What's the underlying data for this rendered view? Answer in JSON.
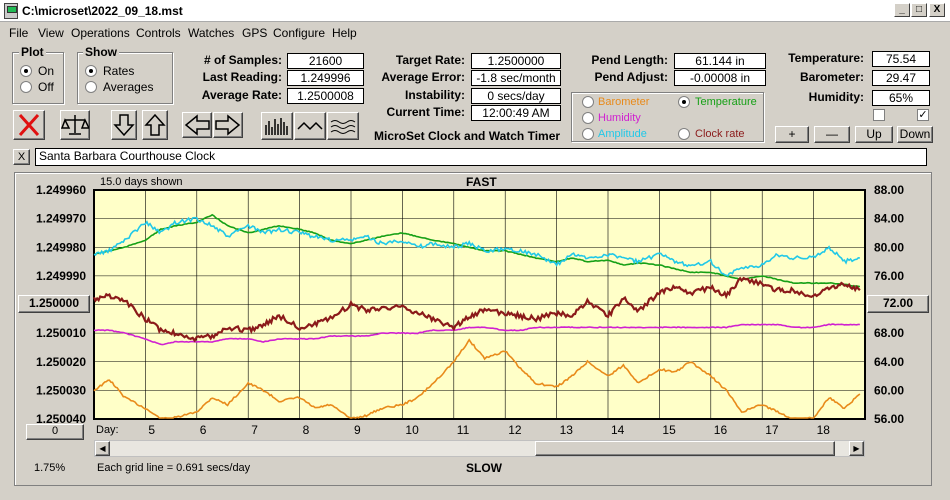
{
  "window": {
    "title": "C:\\microset\\2022_09_18.mst",
    "min": "_",
    "max": "□",
    "close": "X"
  },
  "menu": [
    "File",
    "View",
    "Operations",
    "Controls",
    "Watches",
    "GPS",
    "Configure",
    "Help"
  ],
  "plot": {
    "legend": "Plot",
    "on": "On",
    "off": "Off",
    "selected": "On"
  },
  "show": {
    "legend": "Show",
    "rates": "Rates",
    "averages": "Averages",
    "selected": "Rates"
  },
  "stats": {
    "samples_label": "# of Samples:",
    "samples": "21600",
    "last_label": "Last Reading:",
    "last": "1.249996",
    "avg_label": "Average Rate:",
    "avg": "1.2500008",
    "target_label": "Target Rate:",
    "target": "1.2500000",
    "err_label": "Average Error:",
    "err": "-1.8 sec/month",
    "inst_label": "Instability:",
    "inst": "0 secs/day",
    "time_label": "Current Time:",
    "time": "12:00:49 AM",
    "pend_len_label": "Pend Length:",
    "pend_len": "61.144 in",
    "pend_adj_label": "Pend Adjust:",
    "pend_adj": "-0.00008 in",
    "temp_label": "Temperature:",
    "temp": "75.54",
    "baro_label": "Barometer:",
    "baro": "29.47",
    "hum_label": "Humidity:",
    "hum": "65%"
  },
  "app_name": "MicroSet Clock and Watch Timer",
  "sensors": [
    {
      "label": "Barometer",
      "color": "#e88a1a",
      "selected": false
    },
    {
      "label": "Temperature",
      "color": "#16a016",
      "selected": true
    },
    {
      "label": "Humidity",
      "color": "#d020d0",
      "selected": false
    },
    {
      "label": "Amplitude",
      "color": "#20c8e8",
      "selected": false
    },
    {
      "label": "Clock rate",
      "color": "#8b1a1a",
      "selected": false
    }
  ],
  "adjust_buttons": {
    "plus": "+",
    "minus": "—",
    "up": "Up",
    "down": "Down"
  },
  "checkboxes": [
    {
      "checked": false
    },
    {
      "checked": true
    }
  ],
  "clock_name": "Santa Barbara Courthouse Clock",
  "clear_btn": "X",
  "chart_header": {
    "days_shown": "15.0 days shown",
    "fast": "FAST",
    "slow": "SLOW",
    "grid_note": "Each grid line = 0.691 secs/day",
    "zoom": "1.75%",
    "center_btn": "1.250000",
    "left_btn": "0",
    "right_btn": "72.00",
    "day_label": "Day:"
  },
  "chart_data": {
    "type": "line",
    "title": "",
    "x_ticks": [
      "5",
      "6",
      "7",
      "8",
      "9",
      "10",
      "11",
      "12",
      "13",
      "14",
      "15",
      "16",
      "17",
      "18"
    ],
    "y_ticks_left": [
      "1.249960",
      "1.249970",
      "1.249980",
      "1.249990",
      "1.250000",
      "1.250010",
      "1.250020",
      "1.250030",
      "1.250040"
    ],
    "y_ticks_right": [
      "88.00",
      "84.00",
      "80.00",
      "76.00",
      "72.00",
      "68.00",
      "64.00",
      "60.00",
      "56.00"
    ],
    "xlim": [
      4.0,
      19.0
    ],
    "ylim_left": [
      1.24996,
      1.25004
    ],
    "ylim_right": [
      56,
      88
    ],
    "grid": true,
    "series": [
      {
        "key": "barometer",
        "color": "#e88a1a",
        "axis": "right",
        "x": [
          4,
          4.3,
          4.6,
          5,
          5.3,
          5.6,
          6,
          6.3,
          6.6,
          7,
          7.3,
          7.6,
          8,
          8.3,
          8.6,
          9,
          9.3,
          9.6,
          10,
          10.3,
          10.6,
          11,
          11.3,
          11.6,
          12,
          12.3,
          12.6,
          13,
          13.3,
          13.6,
          14,
          14.3,
          14.6,
          15,
          15.3,
          15.6,
          16,
          16.3,
          16.6,
          17,
          17.3,
          17.6,
          18,
          18.3,
          18.6,
          18.9
        ],
        "y": [
          60,
          61.5,
          59,
          57.5,
          56,
          56.2,
          57,
          59,
          58,
          61,
          60,
          58.5,
          59,
          57.5,
          58,
          56,
          56.5,
          57.5,
          58,
          59,
          61,
          64,
          67,
          64.5,
          65.5,
          63,
          61,
          60.5,
          62,
          64,
          62,
          63.5,
          61,
          63,
          62.5,
          64,
          62,
          60,
          57,
          58,
          57,
          56,
          56.2,
          59,
          57.5,
          59.5
        ]
      },
      {
        "key": "temperature",
        "color": "#16a016",
        "axis": "right",
        "x": [
          4,
          4.3,
          4.6,
          5,
          5.3,
          5.6,
          6,
          6.3,
          6.6,
          7,
          7.3,
          7.6,
          8,
          8.3,
          8.6,
          9,
          9.3,
          9.6,
          10,
          10.3,
          10.6,
          11,
          11.3,
          11.6,
          12,
          12.3,
          12.6,
          13,
          13.3,
          13.6,
          14,
          14.3,
          14.6,
          15,
          15.3,
          15.6,
          16,
          16.3,
          16.6,
          17,
          17.3,
          17.6,
          18,
          18.3,
          18.6,
          18.9
        ],
        "y": [
          79,
          79.5,
          80,
          81,
          82.5,
          83,
          83.5,
          84.5,
          83,
          82,
          82.5,
          83,
          82.5,
          82,
          81,
          80.5,
          81,
          81.5,
          82,
          81.5,
          81,
          80.5,
          80,
          79.5,
          79.5,
          79,
          78.5,
          78,
          78.5,
          78,
          78.2,
          77.5,
          77.8,
          77.5,
          77,
          76.5,
          76.5,
          76,
          75.5,
          76,
          75.5,
          75,
          75,
          75,
          74.8,
          74.5
        ]
      },
      {
        "key": "amplitude",
        "color": "#20c8e8",
        "axis": "right",
        "x": [
          4,
          4.3,
          4.6,
          5,
          5.3,
          5.6,
          6,
          6.3,
          6.6,
          7,
          7.3,
          7.6,
          8,
          8.3,
          8.6,
          9,
          9.3,
          9.6,
          10,
          10.3,
          10.6,
          11,
          11.3,
          11.6,
          12,
          12.3,
          12.6,
          13,
          13.3,
          13.6,
          14,
          14.3,
          14.6,
          15,
          15.3,
          15.6,
          16,
          16.3,
          16.6,
          17,
          17.3,
          17.6,
          18,
          18.3,
          18.6,
          18.9
        ],
        "y": [
          79,
          79.5,
          81,
          83.5,
          82,
          83.5,
          84,
          83,
          81.5,
          83,
          82,
          82.5,
          82,
          81.5,
          81,
          81,
          81.5,
          80.5,
          81,
          80,
          80.5,
          80,
          80.5,
          79.5,
          79.8,
          79.5,
          79,
          77.5,
          79,
          78.5,
          79,
          78.5,
          78,
          79,
          78,
          77.5,
          78,
          76,
          77,
          77.5,
          79,
          78.5,
          78.5,
          80,
          78,
          78.5
        ]
      },
      {
        "key": "humidity",
        "color": "#d020d0",
        "axis": "left",
        "x": [
          4,
          4.3,
          4.6,
          5,
          5.3,
          5.6,
          6,
          6.3,
          6.6,
          7,
          7.3,
          7.6,
          8,
          8.3,
          8.6,
          9,
          9.3,
          9.6,
          10,
          10.3,
          10.6,
          11,
          11.3,
          11.6,
          12,
          12.3,
          12.6,
          13,
          13.3,
          13.6,
          14,
          14.3,
          14.6,
          15,
          15.3,
          15.6,
          16,
          16.3,
          16.6,
          17,
          17.3,
          17.6,
          18,
          18.3,
          18.6,
          18.9
        ],
        "y": [
          1.250009,
          1.250009,
          1.25001,
          1.250012,
          1.250014,
          1.250013,
          1.250013,
          1.250013,
          1.250012,
          1.250012,
          1.250013,
          1.250012,
          1.250012,
          1.250012,
          1.250011,
          1.250011,
          1.250011,
          1.25001,
          1.25001,
          1.25001,
          1.250009,
          1.250009,
          1.250008,
          1.250008,
          1.250009,
          1.250009,
          1.250008,
          1.250008,
          1.250008,
          1.250008,
          1.250008,
          1.250008,
          1.250008,
          1.250008,
          1.250008,
          1.250008,
          1.250008,
          1.250008,
          1.250007,
          1.250007,
          1.250007,
          1.250008,
          1.250008,
          1.250007,
          1.250007,
          1.250007
        ]
      },
      {
        "key": "clock_rate",
        "color": "#8b1a1a",
        "axis": "left",
        "x": [
          4,
          4.3,
          4.6,
          5,
          5.3,
          5.6,
          6,
          6.3,
          6.6,
          7,
          7.3,
          7.6,
          8,
          8.3,
          8.6,
          9,
          9.3,
          9.6,
          10,
          10.3,
          10.6,
          11,
          11.3,
          11.6,
          12,
          12.3,
          12.6,
          13,
          13.3,
          13.6,
          14,
          14.3,
          14.6,
          15,
          15.3,
          15.6,
          16,
          16.3,
          16.6,
          17,
          17.3,
          17.6,
          18,
          18.3,
          18.6,
          18.9
        ],
        "y": [
          1.249998,
          1.249997,
          1.249999,
          1.250005,
          1.250009,
          1.25001,
          1.250012,
          1.250011,
          1.250008,
          1.250009,
          1.250007,
          1.250004,
          1.250008,
          1.250007,
          1.250005,
          1.25,
          1.250002,
          1.250001,
          1.250001,
          1.250003,
          1.250005,
          1.250008,
          1.250004,
          1.250002,
          1.250003,
          1.250004,
          1.250005,
          1.250003,
          1.250004,
          1.249999,
          1.250004,
          1.249998,
          1.250002,
          1.249996,
          1.249994,
          1.249996,
          1.249994,
          1.249997,
          1.249991,
          1.249993,
          1.249995,
          1.249995,
          1.249997,
          1.249994,
          1.249993,
          1.249995
        ]
      }
    ]
  }
}
